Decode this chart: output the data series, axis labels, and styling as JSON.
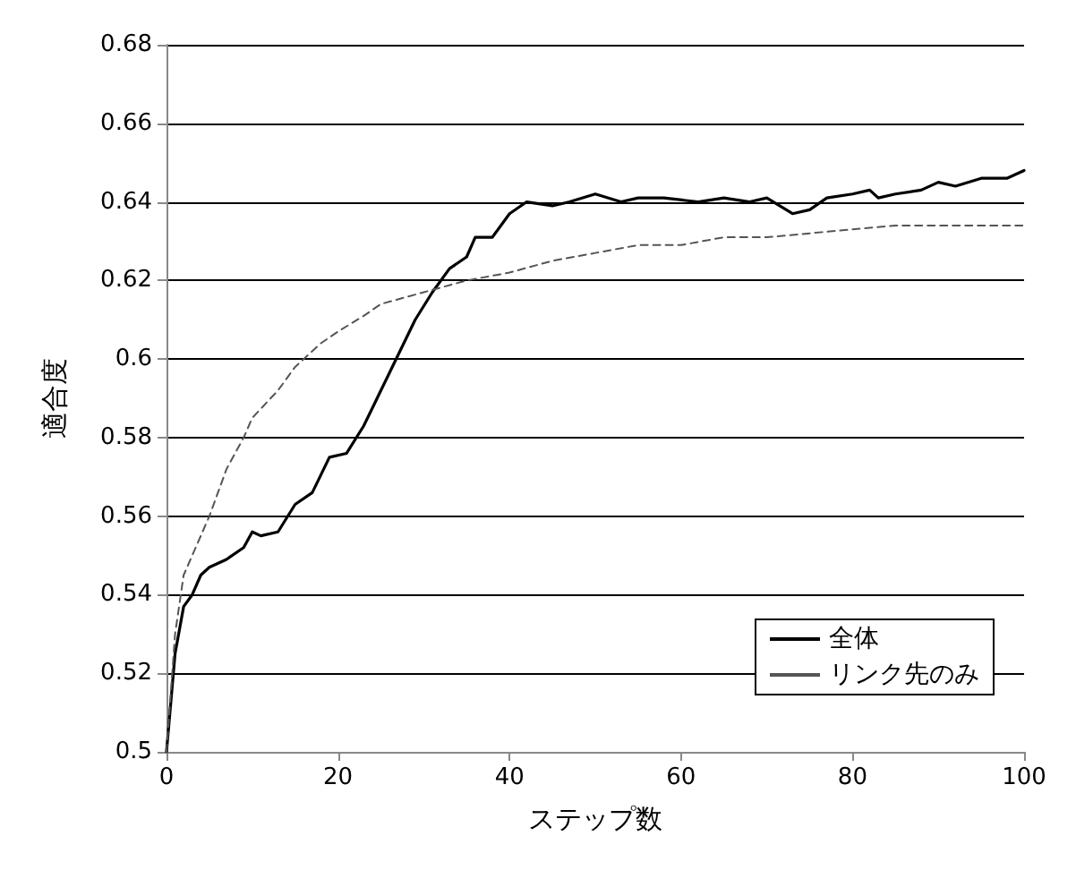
{
  "chart_data": {
    "type": "line",
    "xlabel": "ステップ数",
    "ylabel": "適合度",
    "xlim": [
      0,
      100
    ],
    "xticks": [
      0,
      20,
      40,
      60,
      80,
      100
    ],
    "ylim": [
      0.5,
      0.68
    ],
    "yticks": [
      0.5,
      0.52,
      0.54,
      0.56,
      0.58,
      0.6,
      0.62,
      0.64,
      0.66,
      0.68
    ],
    "grid": "y",
    "legend": "bottom right",
    "marker": "none",
    "series": [
      {
        "name": "全体",
        "color": "#000000",
        "line_style": "solid",
        "x": [
          0,
          1,
          2,
          3,
          4,
          5,
          7,
          9,
          10,
          11,
          13,
          15,
          17,
          19,
          21,
          23,
          25,
          27,
          29,
          31,
          33,
          35,
          36,
          38,
          40,
          42,
          45,
          47,
          50,
          53,
          55,
          58,
          62,
          65,
          68,
          70,
          73,
          75,
          77,
          80,
          82,
          83,
          85,
          88,
          90,
          92,
          95,
          98,
          100
        ],
        "values": [
          0.5,
          0.525,
          0.537,
          0.54,
          0.545,
          0.547,
          0.549,
          0.552,
          0.556,
          0.555,
          0.556,
          0.563,
          0.566,
          0.575,
          0.576,
          0.583,
          0.592,
          0.601,
          0.61,
          0.617,
          0.623,
          0.626,
          0.631,
          0.631,
          0.637,
          0.64,
          0.639,
          0.64,
          0.642,
          0.64,
          0.641,
          0.641,
          0.64,
          0.641,
          0.64,
          0.641,
          0.637,
          0.638,
          0.641,
          0.642,
          0.643,
          0.641,
          0.642,
          0.643,
          0.645,
          0.644,
          0.646,
          0.646,
          0.648
        ]
      },
      {
        "name": "リンク先のみ",
        "color": "#555555",
        "line_style": "dashed",
        "x": [
          0,
          1,
          2,
          3,
          5,
          7,
          9,
          10,
          13,
          15,
          18,
          20,
          23,
          25,
          30,
          35,
          40,
          45,
          50,
          55,
          60,
          65,
          70,
          75,
          80,
          85,
          90,
          95,
          100
        ],
        "values": [
          0.5,
          0.53,
          0.545,
          0.55,
          0.56,
          0.572,
          0.58,
          0.585,
          0.592,
          0.598,
          0.604,
          0.607,
          0.611,
          0.614,
          0.617,
          0.62,
          0.622,
          0.625,
          0.627,
          0.629,
          0.629,
          0.631,
          0.631,
          0.632,
          0.633,
          0.634,
          0.634,
          0.634,
          0.634
        ]
      }
    ]
  }
}
